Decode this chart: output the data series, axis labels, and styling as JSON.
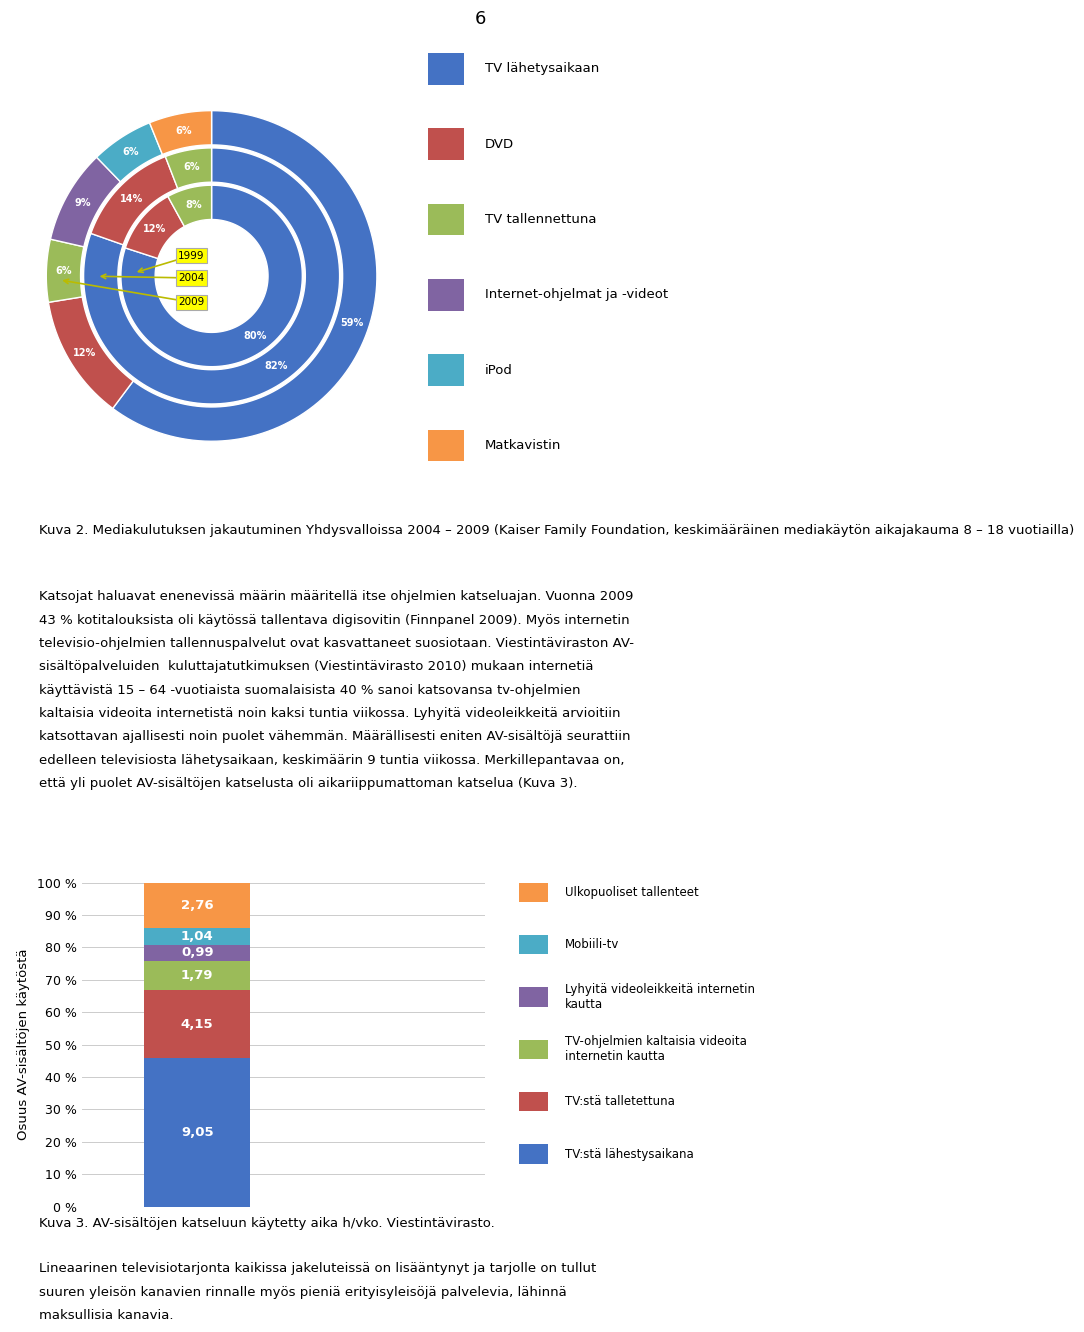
{
  "page_number": "6",
  "donut": {
    "years": [
      "1999",
      "2004",
      "2009"
    ],
    "categories": [
      "TV lähetysaikaan",
      "DVD",
      "TV tallennettuna",
      "Internet-ohjelmat ja -videot",
      "iPod",
      "Matkavistin"
    ],
    "colors": [
      "#4472C4",
      "#C0504D",
      "#9BBB59",
      "#8064A2",
      "#4BACC6",
      "#F79646"
    ],
    "values_1999": [
      80,
      12,
      8,
      0,
      0,
      0
    ],
    "values_2004": [
      82,
      14,
      6,
      0,
      0,
      0
    ],
    "values_2009": [
      59,
      12,
      6,
      9,
      6,
      6
    ],
    "labels_1999": [
      "80%",
      "12%",
      "8%",
      "",
      "",
      ""
    ],
    "labels_2004": [
      "82%",
      "14%",
      "6%",
      "",
      "",
      ""
    ],
    "labels_2009": [
      "59%",
      "12%",
      "6%",
      "9%",
      "6%",
      "6%"
    ]
  },
  "caption1": "Kuva 2. Mediakulutuksen jakautuminen Yhdysvalloissa 2004 – 2009 (Kaiser Family Foundation, keskimääräinen mediakäytön aikajakauma 8 – 18 vuotiailla)",
  "body_text1_lines": [
    "Katsojat haluavat enenevissä määrin määritellä itse ohjelmien katseluajan. Vuonna 2009",
    "43 % kotitalouksista oli käytössä tallentava digisovitin (Finnpanel 2009). Myös internetin",
    "televisio-ohjelmien tallennuspalvelut ovat kasvattaneet suosiotaan. Viestintäviraston AV-",
    "sisältöpalveluiden  kuluttajatutkimuksen (Viestintävirasto 2010) mukaan internetiä",
    "käyttävistä 15 – 64 -vuotiaista suomalaisista 40 % sanoi katsovansa tv-ohjelmien",
    "kaltaisia videoita internetistä noin kaksi tuntia viikossa. Lyhyitä videoleikkeitä arvioitiin",
    "katsottavan ajallisesti noin puolet vähemmän. Määrällisesti eniten AV-sisältöjä seurattiin",
    "edelleen televisiosta lähetysaikaan, keskimäärin 9 tuntia viikossa. Merkillepantavaa on,",
    "että yli puolet AV-sisältöjen katselusta oli aikariippumattoman katselua (Kuva 3)."
  ],
  "bar": {
    "values": [
      9.05,
      4.15,
      1.79,
      0.99,
      1.04,
      2.76
    ],
    "labels": [
      "9,05",
      "4,15",
      "1,79",
      "0,99",
      "1,04",
      "2,76"
    ],
    "colors": [
      "#4472C4",
      "#C0504D",
      "#9BBB59",
      "#8064A2",
      "#4BACC6",
      "#F79646"
    ],
    "legend_labels": [
      "TV:stä lähestysaikana",
      "TV:stä talletettuna",
      "TV-ohjelmien kaltaisia videoita\ninternetin kautta",
      "Lyhyitä videoleikkeitä internetin\nkautta",
      "Mobiili-tv",
      "Ulkopuoliset tallenteet"
    ],
    "ylabel": "Osuus AV-sisältöjen käytöstä",
    "ytick_labels": [
      "0 %",
      "10 %",
      "20 %",
      "30 %",
      "40 %",
      "50 %",
      "60 %",
      "70 %",
      "80 %",
      "90 %",
      "100 %"
    ],
    "ytick_values": [
      0,
      10,
      20,
      30,
      40,
      50,
      60,
      70,
      80,
      90,
      100
    ]
  },
  "caption2": "Kuva 3. AV-sisältöjen katseluun käytetty aika h/vko. Viestintävirasto.",
  "body_text2_lines": [
    "Lineaarinen televisiotarjonta kaikissa jakeluteissä on lisääntynyt ja tarjolle on tullut",
    "suuren yleisön kanavien rinnalle myös pieniä erityisyleisöjä palvelevia, lähinnä",
    "maksullisia kanavia."
  ],
  "bg_color": "#FFFFFF",
  "text_color": "#000000"
}
